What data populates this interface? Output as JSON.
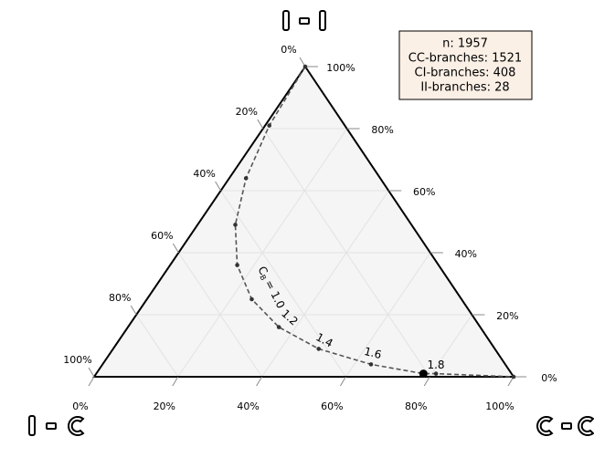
{
  "chart_data": {
    "type": "ternary",
    "grid": true,
    "cc_ticks": [
      {
        "value": 0,
        "label": "0%"
      },
      {
        "value": 0.2,
        "label": "20%"
      },
      {
        "value": 0.4,
        "label": "40%"
      },
      {
        "value": 0.6,
        "label": "60%"
      },
      {
        "value": 0.8,
        "label": "80%"
      },
      {
        "value": 1,
        "label": "100%"
      }
    ],
    "ic_ticks": [
      {
        "value": 0,
        "label": "0%"
      },
      {
        "value": 0.2,
        "label": "20%"
      },
      {
        "value": 0.4,
        "label": "40%"
      },
      {
        "value": 0.6,
        "label": "60%"
      },
      {
        "value": 0.8,
        "label": "80%"
      },
      {
        "value": 1,
        "label": "100%"
      }
    ],
    "ii_ticks": [
      {
        "value": 0,
        "label": "0%"
      },
      {
        "value": 0.2,
        "label": "20%"
      },
      {
        "value": 0.4,
        "label": "40%"
      },
      {
        "value": 0.6,
        "label": "60%"
      },
      {
        "value": 0.8,
        "label": "80%"
      },
      {
        "value": 1,
        "label": "100%"
      }
    ],
    "series": [
      {
        "color": "#555555",
        "cc": [
          0,
          0.01,
          0.04,
          0.09,
          0.16,
          0.25,
          0.36,
          0.49,
          0.64,
          0.78,
          0.81,
          1
        ],
        "ii": [
          1,
          0.81,
          0.64,
          0.49,
          0.36,
          0.25,
          0.16,
          0.09,
          0.04,
          0.01,
          0.01,
          0
        ]
      }
    ],
    "highlight_point": {
      "cc": 0.78,
      "ii": 0.01
    },
    "annotations": [
      {
        "text": "C",
        "subscript": "B",
        "suffix": "= 1.0"
      },
      {
        "text": "1.2"
      },
      {
        "text": "1.4"
      },
      {
        "text": "1.6"
      },
      {
        "text": "1.8"
      }
    ],
    "info_box": [
      "n: 1957",
      "CC-branches: 1521",
      "CI-branches: 408",
      "II-branches: 28"
    ]
  }
}
